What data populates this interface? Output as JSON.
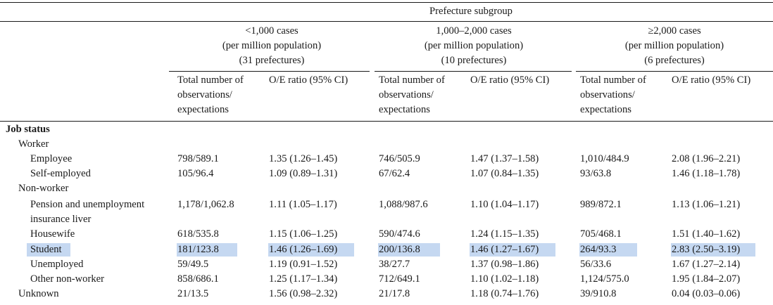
{
  "table": {
    "spanner": "Prefecture subgroup",
    "groups": [
      {
        "lines": [
          "<1,000 cases",
          "(per million population)",
          "(31 prefectures)"
        ]
      },
      {
        "lines": [
          "1,000–2,000 cases",
          "(per million population)",
          "(10 prefectures)"
        ]
      },
      {
        "lines": [
          "≥2,000 cases",
          "(per million population)",
          "(6 prefectures)"
        ]
      }
    ],
    "subheaders": {
      "obs": [
        "Total number of",
        "observations/",
        "expectations"
      ],
      "ratio": "O/E ratio (95% CI)"
    },
    "section_title": "Job status",
    "highlight_color": "#c5d8f1",
    "rows": [
      {
        "label": "Worker",
        "level": 1,
        "values": []
      },
      {
        "label": "Employee",
        "level": 2,
        "values": [
          "798/589.1",
          "1.35 (1.26–1.45)",
          "746/505.9",
          "1.47 (1.37–1.58)",
          "1,010/484.9",
          "2.08 (1.96–2.21)"
        ]
      },
      {
        "label": "Self-employed",
        "level": 2,
        "values": [
          "105/96.4",
          "1.09 (0.89–1.31)",
          "67/62.4",
          "1.07 (0.84–1.35)",
          "93/63.8",
          "1.46 (1.18–1.78)"
        ]
      },
      {
        "label": "Non-worker",
        "level": 1,
        "values": []
      },
      {
        "label": "Pension and unemployment",
        "label2": "insurance liver",
        "level": 2,
        "values": [
          "1,178/1,062.8",
          "1.11 (1.05–1.17)",
          "1,088/987.6",
          "1.10 (1.04–1.17)",
          "989/872.1",
          "1.13 (1.06–1.21)"
        ]
      },
      {
        "label": "Housewife",
        "level": 2,
        "values": [
          "618/535.8",
          "1.15 (1.06–1.25)",
          "590/474.6",
          "1.24 (1.15–1.35)",
          "705/468.1",
          "1.51 (1.40–1.62)"
        ]
      },
      {
        "label": "Student",
        "level": 2,
        "highlighted": true,
        "values": [
          "181/123.8",
          "1.46 (1.26–1.69)",
          "200/136.8",
          "1.46 (1.27–1.67)",
          "264/93.3",
          "2.83 (2.50–3.19)"
        ]
      },
      {
        "label": "Unemployed",
        "level": 2,
        "values": [
          "59/49.5",
          "1.19 (0.91–1.52)",
          "38/27.7",
          "1.37 (0.98–1.86)",
          "56/33.6",
          "1.67 (1.27–2.14)"
        ]
      },
      {
        "label": "Other non-worker",
        "level": 2,
        "values": [
          "858/686.1",
          "1.25 (1.17–1.34)",
          "712/649.1",
          "1.10 (1.02–1.18)",
          "1,124/575.0",
          "1.95 (1.84–2.07)"
        ]
      },
      {
        "label": "Unknown",
        "level": 1,
        "values": [
          "21/13.5",
          "1.56 (0.98–2.32)",
          "21/17.8",
          "1.18 (0.74–1.76)",
          "39/910.8",
          "0.04 (0.03–0.06)"
        ]
      }
    ]
  }
}
